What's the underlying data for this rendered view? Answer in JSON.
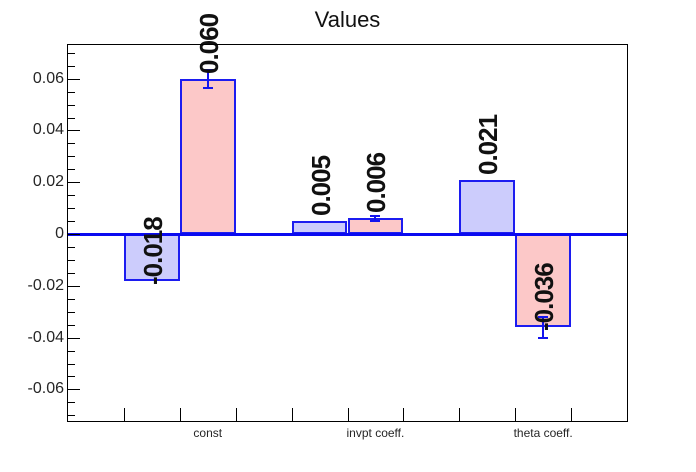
{
  "chart_data": {
    "type": "bar",
    "title": "Values",
    "n_bins": 10,
    "ylim": [
      -0.0722,
      0.073
    ],
    "grid": false,
    "legend": null,
    "y_axis": {
      "major_ticks": [
        0.06,
        0.04,
        0.02,
        0,
        -0.02,
        -0.04,
        -0.06
      ],
      "major_tick_labels": [
        "0.06",
        "0.04",
        "0.02",
        "0",
        "-0.02",
        "-0.04",
        "-0.06"
      ],
      "minor_tick_step": 0.005
    },
    "x_axis": {
      "tick_bins": [
        1,
        2,
        3,
        4,
        5,
        6,
        7,
        8,
        9
      ],
      "labels": [
        {
          "bin_center": 2.5,
          "text": "const"
        },
        {
          "bin_center": 5.5,
          "text": "invpt coeff."
        },
        {
          "bin_center": 8.5,
          "text": "theta coeff."
        }
      ]
    },
    "bars": [
      {
        "bin": 1,
        "value": -0.018,
        "text": "-0.018",
        "series": "blue",
        "error": 0
      },
      {
        "bin": 2,
        "value": 0.06,
        "text": "0.060",
        "series": "pink",
        "error": 0.0035
      },
      {
        "bin": 4,
        "value": 0.005,
        "text": "0.005",
        "series": "blue",
        "error": 0
      },
      {
        "bin": 5,
        "value": 0.006,
        "text": "0.006",
        "series": "pink",
        "error": 0.001
      },
      {
        "bin": 7,
        "value": 0.021,
        "text": "0.021",
        "series": "blue",
        "error": 0
      },
      {
        "bin": 8,
        "value": -0.036,
        "text": "-0.036",
        "series": "pink",
        "error": 0.004
      }
    ],
    "series_colors": {
      "blue": {
        "fill": "#ccccfc",
        "border": "#1c1cf0"
      },
      "pink": {
        "fill": "#fcc8c8",
        "border": "#1c1cf0"
      }
    },
    "zero_line_color": "#0a0af0",
    "error_bar_color": "#1414ee",
    "frame_color": "#000000",
    "value_label_color": "#111111",
    "axis_label_color": "#262626",
    "title_color": "#111111"
  }
}
